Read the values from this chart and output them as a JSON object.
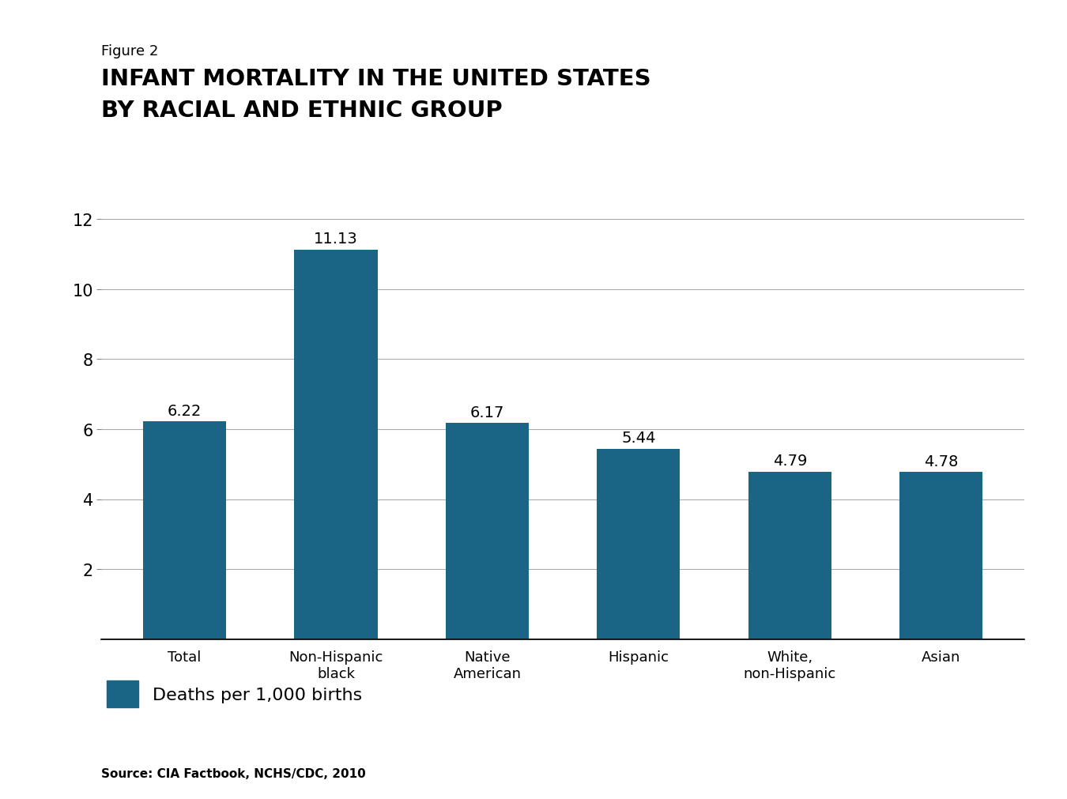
{
  "figure_label": "Figure 2",
  "title_line1": "INFANT MORTALITY IN THE UNITED STATES",
  "title_line2": "BY RACIAL AND ETHNIC GROUP",
  "categories": [
    "Total",
    "Non-Hispanic\nblack",
    "Native\nAmerican",
    "Hispanic",
    "White,\nnon-Hispanic",
    "Asian"
  ],
  "values": [
    6.22,
    11.13,
    6.17,
    5.44,
    4.79,
    4.78
  ],
  "bar_color": "#1a6585",
  "ylim": [
    0,
    12
  ],
  "yticks": [
    2,
    4,
    6,
    8,
    10,
    12
  ],
  "ytick_top": 12,
  "legend_label": "Deaths per 1,000 births",
  "source_text": "Source: CIA Factbook, NCHS/CDC, 2010",
  "background_color": "#ffffff",
  "value_labels": [
    "6.22",
    "11.13",
    "6.17",
    "5.44",
    "4.79",
    "4.78"
  ]
}
